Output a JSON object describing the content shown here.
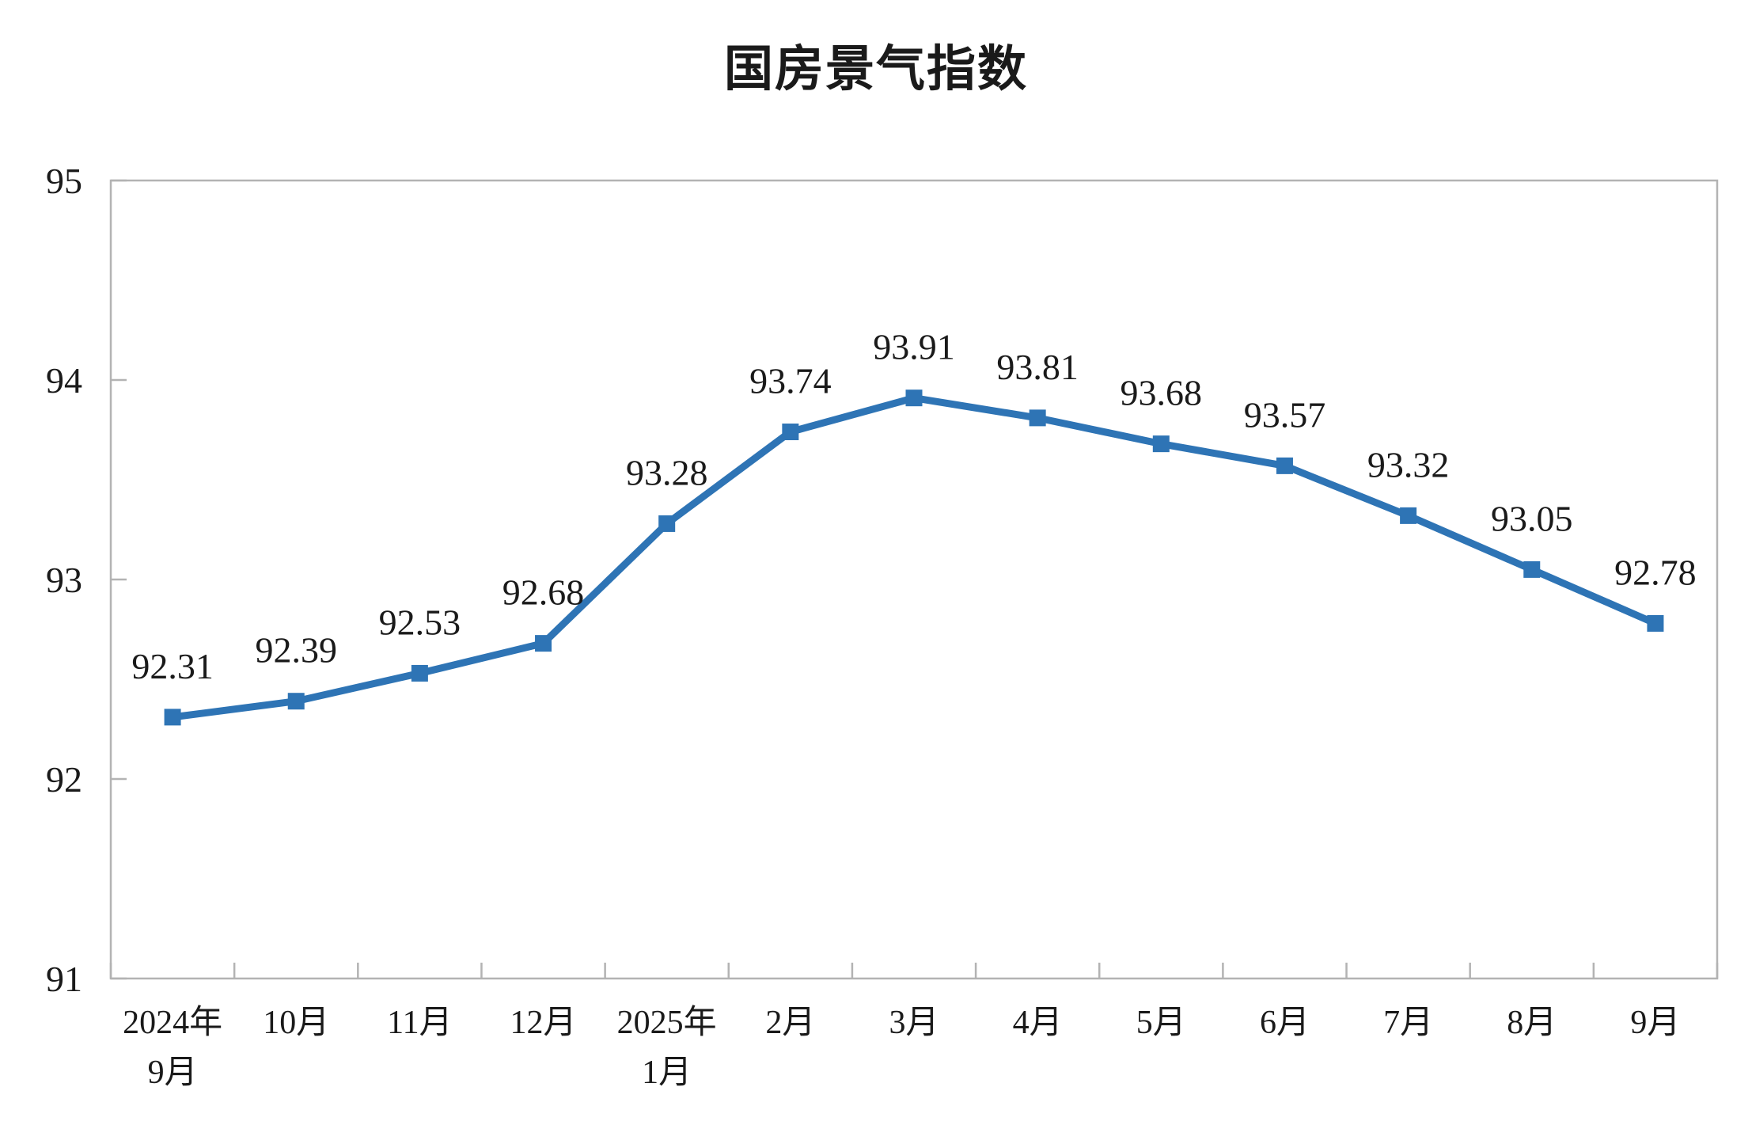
{
  "page_title": "国房景气指数",
  "chart_data": {
    "type": "line",
    "title": "国房景气指数",
    "categories": [
      "2024年\n9月",
      "10月",
      "11月",
      "12月",
      "2025年\n1月",
      "2月",
      "3月",
      "4月",
      "5月",
      "6月",
      "7月",
      "8月",
      "9月"
    ],
    "values": [
      92.31,
      92.39,
      92.53,
      92.68,
      93.28,
      93.74,
      93.91,
      93.81,
      93.68,
      93.57,
      93.32,
      93.05,
      92.78
    ],
    "data_labels": [
      "92.31",
      "92.39",
      "92.53",
      "92.68",
      "93.28",
      "93.74",
      "93.91",
      "93.81",
      "93.68",
      "93.57",
      "93.32",
      "93.05",
      "92.78"
    ],
    "xlabel": "",
    "ylabel": "",
    "ylim": [
      91,
      95
    ],
    "yticks": [
      "91",
      "92",
      "93",
      "94",
      "95"
    ],
    "grid": false,
    "legend_position": "none",
    "line_color": "#2E74B5",
    "marker": "square",
    "axis_color": "#B3B3B3",
    "text_color": "#1a1a1a",
    "background_color": "#ffffff"
  }
}
